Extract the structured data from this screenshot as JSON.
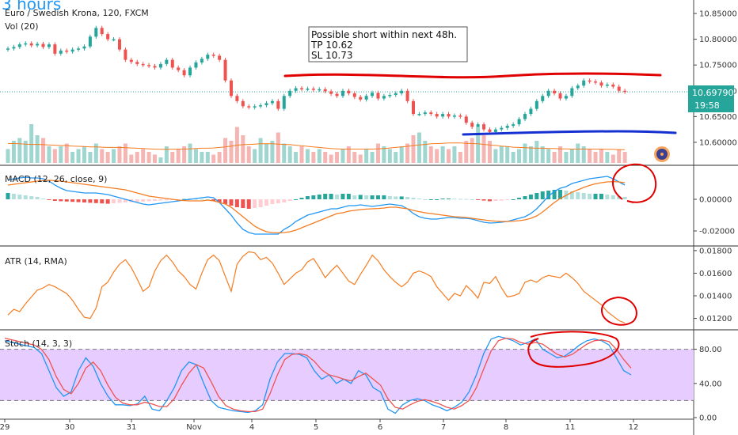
{
  "chart": {
    "corner_text": "3 hours",
    "symbol_title": "Euro / Swedish Krona, 120, FXCM",
    "volume_label": "Vol (20)",
    "macd_label": "MACD (12, 26, close, 9)",
    "atr_label": "ATR (14, RMA)",
    "stoch_label": "Stoch (14, 3, 3)",
    "note_lines": [
      "Possible short within next 48h.",
      "TP 10.62",
      "SL 10.73"
    ],
    "price_badge": "10.69790",
    "time_badge": "19:58",
    "colors": {
      "up": "#26a69a",
      "down": "#ef5350",
      "vol_up": "#9fd6cf",
      "vol_down": "#f5b5b3",
      "ma": "#f57c20",
      "blue": "#2196f3",
      "annot_red": "#e00000",
      "annot_blue": "#1530d0",
      "stoch_band": "#e6ccff"
    }
  },
  "chart_data": [
    {
      "type": "candlestick",
      "title": "Euro / Swedish Krona, 120, FXCM",
      "ylim": [
        10.56,
        10.87
      ],
      "yticks": [
        "10.85000",
        "10.80000",
        "10.75000",
        "10.70000",
        "10.65000",
        "10.60000"
      ],
      "xticks": [
        "29",
        "30",
        "31",
        "Nov",
        "4",
        "5",
        "6",
        "7",
        "8",
        "11",
        "12"
      ],
      "last_price": 10.6979,
      "close": [
        10.782,
        10.785,
        10.79,
        10.792,
        10.788,
        10.791,
        10.785,
        10.79,
        10.772,
        10.778,
        10.776,
        10.78,
        10.782,
        10.786,
        10.805,
        10.822,
        10.81,
        10.8,
        10.8,
        10.78,
        10.76,
        10.756,
        10.752,
        10.75,
        10.748,
        10.745,
        10.752,
        10.76,
        10.745,
        10.74,
        10.73,
        10.745,
        10.755,
        10.762,
        10.77,
        10.768,
        10.76,
        10.72,
        10.69,
        10.68,
        10.67,
        10.668,
        10.67,
        10.672,
        10.676,
        10.68,
        10.665,
        10.69,
        10.7,
        10.705,
        10.703,
        10.704,
        10.702,
        10.703,
        10.699,
        10.694,
        10.69,
        10.7,
        10.695,
        10.688,
        10.683,
        10.69,
        10.696,
        10.685,
        10.69,
        10.692,
        10.695,
        10.7,
        10.68,
        10.655,
        10.655,
        10.658,
        10.655,
        10.65,
        10.655,
        10.65,
        10.652,
        10.65,
        10.638,
        10.63,
        10.635,
        10.625,
        10.62,
        10.625,
        10.628,
        10.632,
        10.635,
        10.645,
        10.655,
        10.665,
        10.68,
        10.69,
        10.7,
        10.695,
        10.685,
        10.69,
        10.705,
        10.71,
        10.72,
        10.718,
        10.716,
        10.71,
        10.712,
        10.708,
        10.7,
        10.698
      ]
    },
    {
      "type": "bar",
      "title": "Vol (20)",
      "values": [
        5,
        8,
        9,
        8,
        14,
        10,
        9,
        6,
        5,
        6,
        7,
        4,
        5,
        6,
        4,
        7,
        5,
        4,
        5,
        6,
        7,
        3,
        4,
        5,
        4,
        3,
        2,
        6,
        4,
        5,
        6,
        7,
        5,
        4,
        4,
        3,
        4,
        9,
        8,
        13,
        10,
        6,
        5,
        9,
        7,
        8,
        11,
        7,
        6,
        4,
        6,
        5,
        4,
        5,
        4,
        3,
        4,
        5,
        6,
        4,
        3,
        5,
        4,
        7,
        6,
        5,
        4,
        6,
        7,
        10,
        11,
        8,
        6,
        5,
        6,
        5,
        6,
        4,
        8,
        9,
        13,
        10,
        8,
        5,
        6,
        6,
        4,
        5,
        7,
        6,
        8,
        6,
        5,
        4,
        6,
        4,
        5,
        7,
        6,
        5,
        4,
        5,
        4,
        3,
        5,
        4
      ],
      "up": [
        true,
        true,
        true,
        true,
        true,
        true,
        false,
        true,
        false,
        true,
        false,
        true,
        true,
        true,
        true,
        true,
        false,
        false,
        true,
        false,
        false,
        false,
        false,
        false,
        false,
        false,
        true,
        true,
        false,
        false,
        false,
        true,
        true,
        true,
        true,
        false,
        false,
        false,
        false,
        false,
        false,
        false,
        true,
        true,
        true,
        true,
        false,
        true,
        true,
        true,
        false,
        true,
        false,
        true,
        false,
        false,
        false,
        true,
        false,
        false,
        false,
        true,
        true,
        false,
        true,
        true,
        true,
        true,
        false,
        false,
        true,
        true,
        false,
        false,
        true,
        false,
        true,
        false,
        false,
        false,
        true,
        false,
        false,
        true,
        true,
        true,
        true,
        true,
        true,
        true,
        true,
        true,
        true,
        false,
        false,
        true,
        true,
        true,
        true,
        false,
        false,
        false,
        true,
        false,
        false,
        false
      ],
      "ma_line": [
        7.0,
        7.0,
        6.9,
        6.8,
        6.7,
        6.7,
        6.6,
        6.5,
        6.4,
        6.3,
        6.2,
        6.1,
        6.0,
        5.9,
        5.8,
        5.8,
        5.7,
        5.6,
        5.6,
        5.6,
        5.5,
        5.4,
        5.3,
        5.2,
        5.1,
        5.0,
        4.9,
        4.9,
        4.9,
        5.0,
        5.0,
        5.1,
        5.2,
        5.3,
        5.3,
        5.4,
        5.6,
        5.8,
        6.1,
        6.4,
        6.6,
        6.7,
        6.8,
        6.9,
        6.9,
        6.9,
        6.8,
        6.7,
        6.6,
        6.4,
        6.2,
        6.0,
        5.8,
        5.6,
        5.4,
        5.2,
        5.1,
        5.0,
        5.0,
        5.0,
        5.0,
        5.0,
        5.0,
        5.1,
        5.2,
        5.4,
        5.6,
        5.8,
        6.0,
        6.3,
        6.5,
        6.7,
        6.9,
        7.0,
        7.1,
        7.2,
        7.2,
        7.2,
        7.1,
        7.0,
        6.9,
        6.7,
        6.5,
        6.3,
        6.1,
        5.9,
        5.7,
        5.6,
        5.5,
        5.4,
        5.3,
        5.3,
        5.2,
        5.2,
        5.1,
        5.1,
        5.0,
        5.0,
        5.0,
        5.0,
        5.0,
        5.0,
        4.9,
        4.9,
        4.8,
        4.8
      ],
      "ylim": [
        0,
        16
      ]
    },
    {
      "type": "histogram+line",
      "title": "MACD (12, 26, close, 9)",
      "ylim": [
        -0.028,
        0.02
      ],
      "yticks": [
        "0.00000",
        "-0.02000"
      ],
      "ytick_values": [
        0,
        -0.02
      ],
      "hist": [
        0.004,
        0.0035,
        0.003,
        0.0025,
        0.002,
        0.0015,
        0.0005,
        -0.0005,
        -0.001,
        -0.0012,
        -0.0014,
        -0.0016,
        -0.0018,
        -0.002,
        -0.0022,
        -0.0024,
        -0.0026,
        -0.0028,
        -0.0025,
        -0.0022,
        -0.002,
        -0.0018,
        -0.0016,
        -0.0014,
        -0.0012,
        -0.001,
        -0.0008,
        -0.0006,
        -0.0004,
        -0.0002,
        0.0002,
        0.0004,
        0.0003,
        0.0002,
        0.0001,
        -0.001,
        -0.002,
        -0.003,
        -0.004,
        -0.005,
        -0.0055,
        -0.006,
        -0.0055,
        -0.005,
        -0.004,
        -0.003,
        -0.0025,
        -0.002,
        -0.001,
        0.0,
        0.001,
        0.002,
        0.0025,
        0.003,
        0.0035,
        0.0035,
        0.003,
        0.0035,
        0.0035,
        0.0025,
        0.0028,
        0.0025,
        0.0025,
        0.0025,
        0.0025,
        0.002,
        0.0018,
        0.0018,
        0.0015,
        0.001,
        0.0005,
        0.0,
        0.0,
        0.0,
        0.0005,
        0.0005,
        0.0004,
        0.0003,
        0.0002,
        0.0,
        -0.0004,
        -0.0008,
        -0.0012,
        -0.001,
        -0.0008,
        -0.0004,
        0.0,
        0.001,
        0.002,
        0.003,
        0.004,
        0.005,
        0.0055,
        0.006,
        0.006,
        0.0055,
        0.005,
        0.0045,
        0.004,
        0.0035,
        0.0035,
        0.0035,
        0.003,
        0.0025,
        0.002,
        0.0015
      ],
      "macd": [
        0.012,
        0.013,
        0.0135,
        0.014,
        0.0135,
        0.0135,
        0.013,
        0.0115,
        0.009,
        0.007,
        0.0055,
        0.005,
        0.0045,
        0.004,
        0.004,
        0.004,
        0.0035,
        0.003,
        0.002,
        0.001,
        0.0,
        -0.001,
        -0.002,
        -0.003,
        -0.0035,
        -0.003,
        -0.0025,
        -0.002,
        -0.0015,
        -0.001,
        -0.0005,
        0.0,
        0.0005,
        0.001,
        0.0015,
        0.001,
        -0.002,
        -0.006,
        -0.01,
        -0.015,
        -0.019,
        -0.021,
        -0.022,
        -0.022,
        -0.022,
        -0.022,
        -0.022,
        -0.019,
        -0.017,
        -0.014,
        -0.012,
        -0.01,
        -0.009,
        -0.008,
        -0.007,
        -0.006,
        -0.006,
        -0.005,
        -0.004,
        -0.004,
        -0.0035,
        -0.004,
        -0.0045,
        -0.004,
        -0.0035,
        -0.003,
        -0.0035,
        -0.004,
        -0.006,
        -0.009,
        -0.011,
        -0.012,
        -0.0125,
        -0.0125,
        -0.012,
        -0.0115,
        -0.0115,
        -0.012,
        -0.012,
        -0.0125,
        -0.0135,
        -0.0145,
        -0.015,
        -0.0148,
        -0.0145,
        -0.014,
        -0.013,
        -0.012,
        -0.011,
        -0.009,
        -0.006,
        -0.002,
        0.002,
        0.005,
        0.007,
        0.008,
        0.01,
        0.011,
        0.012,
        0.013,
        0.0135,
        0.014,
        0.0145,
        0.013,
        0.011,
        0.009
      ],
      "signal": [
        0.009,
        0.0095,
        0.01,
        0.0105,
        0.011,
        0.0115,
        0.0118,
        0.012,
        0.0118,
        0.0115,
        0.011,
        0.0105,
        0.01,
        0.0095,
        0.009,
        0.0085,
        0.008,
        0.0075,
        0.007,
        0.0065,
        0.006,
        0.005,
        0.004,
        0.003,
        0.002,
        0.0015,
        0.001,
        0.0005,
        0.0,
        -0.0005,
        -0.0008,
        -0.001,
        -0.001,
        -0.001,
        -0.0005,
        -0.001,
        -0.002,
        -0.003,
        -0.005,
        -0.008,
        -0.011,
        -0.014,
        -0.017,
        -0.019,
        -0.0205,
        -0.021,
        -0.0212,
        -0.021,
        -0.0205,
        -0.0195,
        -0.018,
        -0.0165,
        -0.015,
        -0.0135,
        -0.012,
        -0.0105,
        -0.009,
        -0.0085,
        -0.0075,
        -0.007,
        -0.0065,
        -0.0062,
        -0.006,
        -0.0058,
        -0.0055,
        -0.005,
        -0.005,
        -0.0055,
        -0.006,
        -0.007,
        -0.0078,
        -0.0085,
        -0.009,
        -0.0095,
        -0.01,
        -0.0105,
        -0.011,
        -0.0112,
        -0.0115,
        -0.012,
        -0.0125,
        -0.013,
        -0.0135,
        -0.0138,
        -0.014,
        -0.014,
        -0.0138,
        -0.0135,
        -0.013,
        -0.012,
        -0.0105,
        -0.008,
        -0.005,
        -0.002,
        0.0005,
        0.0025,
        0.0045,
        0.006,
        0.0075,
        0.0088,
        0.0098,
        0.0105,
        0.011,
        0.0112,
        0.011,
        0.0105
      ]
    },
    {
      "type": "line",
      "title": "ATR (14, RMA)",
      "ylim": [
        0.0112,
        0.0182
      ],
      "yticks": [
        "0.01800",
        "0.01600",
        "0.01400",
        "0.01200"
      ],
      "ytick_values": [
        0.018,
        0.016,
        0.014,
        0.012
      ],
      "values": [
        0.0123,
        0.0128,
        0.0126,
        0.0133,
        0.0139,
        0.0145,
        0.0147,
        0.015,
        0.0148,
        0.0145,
        0.0142,
        0.0136,
        0.0128,
        0.0121,
        0.012,
        0.0129,
        0.0148,
        0.0152,
        0.0161,
        0.0168,
        0.0172,
        0.0165,
        0.0155,
        0.0144,
        0.0148,
        0.0162,
        0.0171,
        0.0176,
        0.017,
        0.0162,
        0.0157,
        0.015,
        0.0146,
        0.016,
        0.0172,
        0.0176,
        0.0171,
        0.0157,
        0.0144,
        0.0168,
        0.0175,
        0.0179,
        0.0178,
        0.0172,
        0.0174,
        0.0169,
        0.016,
        0.015,
        0.0155,
        0.016,
        0.0163,
        0.017,
        0.0173,
        0.0165,
        0.0156,
        0.0162,
        0.0167,
        0.016,
        0.0153,
        0.015,
        0.0159,
        0.0167,
        0.0176,
        0.0171,
        0.0163,
        0.0157,
        0.0152,
        0.0148,
        0.0152,
        0.016,
        0.0162,
        0.016,
        0.0157,
        0.0148,
        0.0142,
        0.0136,
        0.0142,
        0.014,
        0.0149,
        0.0144,
        0.0138,
        0.0152,
        0.0151,
        0.0157,
        0.0147,
        0.0139,
        0.014,
        0.0142,
        0.0152,
        0.0154,
        0.0152,
        0.0156,
        0.0158,
        0.0157,
        0.0156,
        0.016,
        0.0156,
        0.0151,
        0.0144,
        0.014,
        0.0136,
        0.0132,
        0.0126,
        0.0122,
        0.0118,
        0.0116
      ]
    },
    {
      "type": "line",
      "title": "Stoch (14, 3, 3)",
      "ylim": [
        0,
        100
      ],
      "yticks": [
        "80.00",
        "40.00",
        "0.00"
      ],
      "ytick_values": [
        80,
        40,
        0
      ],
      "band": [
        20,
        80
      ],
      "k": [
        90,
        88,
        86,
        84,
        82,
        75,
        55,
        35,
        25,
        30,
        55,
        70,
        60,
        40,
        25,
        15,
        15,
        14,
        16,
        25,
        10,
        8,
        20,
        35,
        55,
        65,
        62,
        40,
        20,
        12,
        10,
        8,
        7,
        6,
        8,
        15,
        45,
        65,
        75,
        75,
        74,
        70,
        55,
        45,
        50,
        40,
        45,
        40,
        55,
        50,
        35,
        30,
        10,
        5,
        15,
        20,
        22,
        20,
        15,
        12,
        8,
        12,
        18,
        30,
        50,
        75,
        92,
        95,
        93,
        90,
        85,
        88,
        92,
        80,
        75,
        70,
        72,
        78,
        85,
        90,
        92,
        90,
        85,
        70,
        55,
        50
      ],
      "d": [
        93,
        91,
        89,
        87,
        85,
        80,
        68,
        48,
        33,
        28,
        40,
        58,
        65,
        55,
        38,
        24,
        17,
        15,
        15,
        18,
        16,
        13,
        13,
        22,
        38,
        52,
        62,
        58,
        42,
        25,
        14,
        10,
        8,
        7,
        7,
        10,
        28,
        50,
        68,
        74,
        75,
        73,
        66,
        56,
        50,
        48,
        45,
        43,
        48,
        52,
        45,
        38,
        22,
        12,
        10,
        15,
        19,
        21,
        19,
        16,
        12,
        10,
        14,
        20,
        35,
        57,
        78,
        90,
        93,
        92,
        88,
        86,
        88,
        86,
        80,
        74,
        71,
        74,
        80,
        86,
        90,
        91,
        89,
        80,
        68,
        58
      ]
    }
  ]
}
